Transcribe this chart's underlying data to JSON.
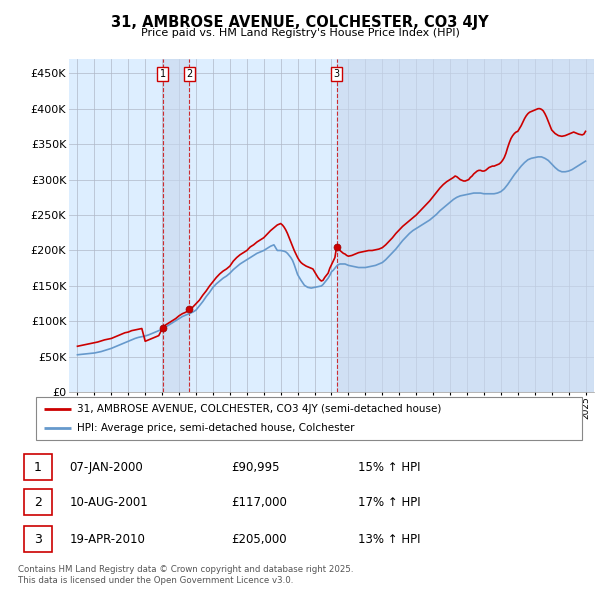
{
  "title": "31, AMBROSE AVENUE, COLCHESTER, CO3 4JY",
  "subtitle": "Price paid vs. HM Land Registry's House Price Index (HPI)",
  "ylim": [
    0,
    470000
  ],
  "yticks": [
    0,
    50000,
    100000,
    150000,
    200000,
    250000,
    300000,
    350000,
    400000,
    450000
  ],
  "ytick_labels": [
    "£0",
    "£50K",
    "£100K",
    "£150K",
    "£200K",
    "£250K",
    "£300K",
    "£350K",
    "£400K",
    "£450K"
  ],
  "line_color_property": "#cc0000",
  "line_color_hpi": "#6699cc",
  "bg_color": "#ddeeff",
  "legend_property_label": "31, AMBROSE AVENUE, COLCHESTER, CO3 4JY (semi-detached house)",
  "legend_hpi_label": "HPI: Average price, semi-detached house, Colchester",
  "transactions": [
    {
      "num": 1,
      "date": "07-JAN-2000",
      "price": "£90,995",
      "hpi": "15% ↑ HPI",
      "year": 2000.03,
      "value": 90995
    },
    {
      "num": 2,
      "date": "10-AUG-2001",
      "price": "£117,000",
      "hpi": "17% ↑ HPI",
      "year": 2001.61,
      "value": 117000
    },
    {
      "num": 3,
      "date": "19-APR-2010",
      "price": "£205,000",
      "hpi": "13% ↑ HPI",
      "year": 2010.3,
      "value": 205000
    }
  ],
  "footnote": "Contains HM Land Registry data © Crown copyright and database right 2025.\nThis data is licensed under the Open Government Licence v3.0.",
  "property_data": [
    [
      1995.0,
      65000
    ],
    [
      1995.1,
      65500
    ],
    [
      1995.2,
      66000
    ],
    [
      1995.3,
      66500
    ],
    [
      1995.4,
      67000
    ],
    [
      1995.5,
      67500
    ],
    [
      1995.6,
      68000
    ],
    [
      1995.7,
      68500
    ],
    [
      1995.8,
      69000
    ],
    [
      1995.9,
      69500
    ],
    [
      1996.0,
      70000
    ],
    [
      1996.2,
      71000
    ],
    [
      1996.4,
      72500
    ],
    [
      1996.6,
      74000
    ],
    [
      1996.8,
      75000
    ],
    [
      1997.0,
      76000
    ],
    [
      1997.2,
      78000
    ],
    [
      1997.4,
      80000
    ],
    [
      1997.6,
      82000
    ],
    [
      1997.8,
      84000
    ],
    [
      1998.0,
      85000
    ],
    [
      1998.2,
      87000
    ],
    [
      1998.4,
      88000
    ],
    [
      1998.6,
      89000
    ],
    [
      1998.8,
      90000
    ],
    [
      1999.0,
      72000
    ],
    [
      1999.2,
      74000
    ],
    [
      1999.4,
      76000
    ],
    [
      1999.6,
      78000
    ],
    [
      1999.8,
      80000
    ],
    [
      2000.03,
      90995
    ],
    [
      2000.1,
      93000
    ],
    [
      2000.2,
      95000
    ],
    [
      2000.4,
      98000
    ],
    [
      2000.6,
      101000
    ],
    [
      2000.8,
      104000
    ],
    [
      2001.0,
      108000
    ],
    [
      2001.2,
      111000
    ],
    [
      2001.4,
      113000
    ],
    [
      2001.61,
      117000
    ],
    [
      2001.8,
      120000
    ],
    [
      2002.0,
      125000
    ],
    [
      2002.2,
      130000
    ],
    [
      2002.4,
      137000
    ],
    [
      2002.6,
      143000
    ],
    [
      2002.8,
      150000
    ],
    [
      2003.0,
      156000
    ],
    [
      2003.2,
      162000
    ],
    [
      2003.4,
      167000
    ],
    [
      2003.6,
      171000
    ],
    [
      2003.8,
      174000
    ],
    [
      2004.0,
      178000
    ],
    [
      2004.2,
      185000
    ],
    [
      2004.4,
      190000
    ],
    [
      2004.6,
      194000
    ],
    [
      2004.8,
      197000
    ],
    [
      2005.0,
      200000
    ],
    [
      2005.2,
      205000
    ],
    [
      2005.4,
      208000
    ],
    [
      2005.6,
      212000
    ],
    [
      2005.8,
      215000
    ],
    [
      2006.0,
      218000
    ],
    [
      2006.2,
      223000
    ],
    [
      2006.4,
      228000
    ],
    [
      2006.6,
      232000
    ],
    [
      2006.8,
      236000
    ],
    [
      2007.0,
      238000
    ],
    [
      2007.1,
      236000
    ],
    [
      2007.2,
      233000
    ],
    [
      2007.3,
      229000
    ],
    [
      2007.4,
      224000
    ],
    [
      2007.5,
      218000
    ],
    [
      2007.6,
      212000
    ],
    [
      2007.7,
      206000
    ],
    [
      2007.8,
      200000
    ],
    [
      2007.9,
      195000
    ],
    [
      2008.0,
      190000
    ],
    [
      2008.1,
      186000
    ],
    [
      2008.2,
      183000
    ],
    [
      2008.3,
      181000
    ],
    [
      2008.5,
      178000
    ],
    [
      2008.7,
      176000
    ],
    [
      2008.9,
      174000
    ],
    [
      2009.0,
      170000
    ],
    [
      2009.1,
      166000
    ],
    [
      2009.2,
      162000
    ],
    [
      2009.3,
      159000
    ],
    [
      2009.4,
      157000
    ],
    [
      2009.5,
      158000
    ],
    [
      2009.6,
      162000
    ],
    [
      2009.8,
      168000
    ],
    [
      2009.9,
      175000
    ],
    [
      2010.0,
      180000
    ],
    [
      2010.1,
      185000
    ],
    [
      2010.2,
      190000
    ],
    [
      2010.3,
      205000
    ],
    [
      2010.4,
      203000
    ],
    [
      2010.5,
      200000
    ],
    [
      2010.6,
      198000
    ],
    [
      2010.7,
      196000
    ],
    [
      2010.8,
      195000
    ],
    [
      2010.9,
      193000
    ],
    [
      2011.0,
      192000
    ],
    [
      2011.2,
      193000
    ],
    [
      2011.4,
      195000
    ],
    [
      2011.6,
      197000
    ],
    [
      2011.8,
      198000
    ],
    [
      2012.0,
      199000
    ],
    [
      2012.2,
      200000
    ],
    [
      2012.4,
      200000
    ],
    [
      2012.6,
      201000
    ],
    [
      2012.8,
      202000
    ],
    [
      2013.0,
      204000
    ],
    [
      2013.2,
      208000
    ],
    [
      2013.4,
      213000
    ],
    [
      2013.6,
      218000
    ],
    [
      2013.8,
      224000
    ],
    [
      2014.0,
      229000
    ],
    [
      2014.2,
      234000
    ],
    [
      2014.4,
      238000
    ],
    [
      2014.6,
      242000
    ],
    [
      2014.8,
      246000
    ],
    [
      2015.0,
      250000
    ],
    [
      2015.2,
      255000
    ],
    [
      2015.4,
      260000
    ],
    [
      2015.6,
      265000
    ],
    [
      2015.8,
      270000
    ],
    [
      2016.0,
      276000
    ],
    [
      2016.2,
      282000
    ],
    [
      2016.4,
      288000
    ],
    [
      2016.6,
      293000
    ],
    [
      2016.8,
      297000
    ],
    [
      2017.0,
      300000
    ],
    [
      2017.2,
      303000
    ],
    [
      2017.3,
      305000
    ],
    [
      2017.4,
      304000
    ],
    [
      2017.5,
      302000
    ],
    [
      2017.6,
      300000
    ],
    [
      2017.7,
      299000
    ],
    [
      2017.8,
      298000
    ],
    [
      2017.9,
      298000
    ],
    [
      2018.0,
      299000
    ],
    [
      2018.1,
      300000
    ],
    [
      2018.2,
      303000
    ],
    [
      2018.3,
      305000
    ],
    [
      2018.4,
      308000
    ],
    [
      2018.5,
      310000
    ],
    [
      2018.6,
      312000
    ],
    [
      2018.7,
      313000
    ],
    [
      2018.8,
      313000
    ],
    [
      2018.9,
      312000
    ],
    [
      2019.0,
      312000
    ],
    [
      2019.1,
      313000
    ],
    [
      2019.2,
      315000
    ],
    [
      2019.3,
      317000
    ],
    [
      2019.4,
      318000
    ],
    [
      2019.5,
      319000
    ],
    [
      2019.6,
      319000
    ],
    [
      2019.7,
      320000
    ],
    [
      2019.8,
      321000
    ],
    [
      2019.9,
      322000
    ],
    [
      2020.0,
      324000
    ],
    [
      2020.1,
      327000
    ],
    [
      2020.2,
      331000
    ],
    [
      2020.3,
      337000
    ],
    [
      2020.4,
      345000
    ],
    [
      2020.5,
      352000
    ],
    [
      2020.6,
      358000
    ],
    [
      2020.7,
      362000
    ],
    [
      2020.8,
      365000
    ],
    [
      2020.9,
      367000
    ],
    [
      2021.0,
      368000
    ],
    [
      2021.1,
      372000
    ],
    [
      2021.2,
      376000
    ],
    [
      2021.3,
      381000
    ],
    [
      2021.4,
      386000
    ],
    [
      2021.5,
      390000
    ],
    [
      2021.6,
      393000
    ],
    [
      2021.7,
      395000
    ],
    [
      2021.8,
      396000
    ],
    [
      2021.9,
      397000
    ],
    [
      2022.0,
      398000
    ],
    [
      2022.1,
      399000
    ],
    [
      2022.2,
      400000
    ],
    [
      2022.3,
      400000
    ],
    [
      2022.4,
      399000
    ],
    [
      2022.5,
      397000
    ],
    [
      2022.6,
      393000
    ],
    [
      2022.7,
      388000
    ],
    [
      2022.8,
      382000
    ],
    [
      2022.9,
      376000
    ],
    [
      2023.0,
      370000
    ],
    [
      2023.2,
      365000
    ],
    [
      2023.4,
      362000
    ],
    [
      2023.6,
      361000
    ],
    [
      2023.8,
      362000
    ],
    [
      2024.0,
      364000
    ],
    [
      2024.2,
      366000
    ],
    [
      2024.3,
      367000
    ],
    [
      2024.4,
      366000
    ],
    [
      2024.5,
      365000
    ],
    [
      2024.6,
      364000
    ],
    [
      2024.8,
      363000
    ],
    [
      2024.9,
      364000
    ],
    [
      2025.0,
      368000
    ]
  ],
  "hpi_data": [
    [
      1995.0,
      53000
    ],
    [
      1995.2,
      53500
    ],
    [
      1995.4,
      54000
    ],
    [
      1995.6,
      54500
    ],
    [
      1995.8,
      55000
    ],
    [
      1996.0,
      55500
    ],
    [
      1996.2,
      56500
    ],
    [
      1996.4,
      57500
    ],
    [
      1996.6,
      59000
    ],
    [
      1996.8,
      60500
    ],
    [
      1997.0,
      62000
    ],
    [
      1997.2,
      64000
    ],
    [
      1997.4,
      66000
    ],
    [
      1997.6,
      68000
    ],
    [
      1997.8,
      70000
    ],
    [
      1998.0,
      72000
    ],
    [
      1998.2,
      74000
    ],
    [
      1998.4,
      76000
    ],
    [
      1998.6,
      77500
    ],
    [
      1998.8,
      78500
    ],
    [
      1999.0,
      79500
    ],
    [
      1999.2,
      81000
    ],
    [
      1999.4,
      83000
    ],
    [
      1999.6,
      85000
    ],
    [
      1999.8,
      87000
    ],
    [
      2000.0,
      89000
    ],
    [
      2000.2,
      92000
    ],
    [
      2000.4,
      95000
    ],
    [
      2000.6,
      98000
    ],
    [
      2000.8,
      101000
    ],
    [
      2001.0,
      104000
    ],
    [
      2001.2,
      107000
    ],
    [
      2001.4,
      109000
    ],
    [
      2001.6,
      111000
    ],
    [
      2001.8,
      113000
    ],
    [
      2002.0,
      116000
    ],
    [
      2002.2,
      122000
    ],
    [
      2002.4,
      128000
    ],
    [
      2002.6,
      135000
    ],
    [
      2002.8,
      141000
    ],
    [
      2003.0,
      148000
    ],
    [
      2003.2,
      153000
    ],
    [
      2003.4,
      157000
    ],
    [
      2003.6,
      161000
    ],
    [
      2003.8,
      164000
    ],
    [
      2004.0,
      168000
    ],
    [
      2004.2,
      173000
    ],
    [
      2004.4,
      177000
    ],
    [
      2004.6,
      181000
    ],
    [
      2004.8,
      184000
    ],
    [
      2005.0,
      187000
    ],
    [
      2005.2,
      190000
    ],
    [
      2005.4,
      193000
    ],
    [
      2005.6,
      196000
    ],
    [
      2005.8,
      198000
    ],
    [
      2006.0,
      200000
    ],
    [
      2006.2,
      203000
    ],
    [
      2006.4,
      206000
    ],
    [
      2006.6,
      208000
    ],
    [
      2006.8,
      200000
    ],
    [
      2007.0,
      200000
    ],
    [
      2007.2,
      199000
    ],
    [
      2007.3,
      198000
    ],
    [
      2007.4,
      196000
    ],
    [
      2007.5,
      193000
    ],
    [
      2007.6,
      190000
    ],
    [
      2007.7,
      186000
    ],
    [
      2007.8,
      180000
    ],
    [
      2007.9,
      173000
    ],
    [
      2008.0,
      166000
    ],
    [
      2008.2,
      158000
    ],
    [
      2008.4,
      151000
    ],
    [
      2008.6,
      148000
    ],
    [
      2008.8,
      147000
    ],
    [
      2009.0,
      148000
    ],
    [
      2009.2,
      149000
    ],
    [
      2009.3,
      149500
    ],
    [
      2009.4,
      150000
    ],
    [
      2009.5,
      152000
    ],
    [
      2009.6,
      155000
    ],
    [
      2009.7,
      158000
    ],
    [
      2009.8,
      161000
    ],
    [
      2009.9,
      165000
    ],
    [
      2010.0,
      170000
    ],
    [
      2010.1,
      172000
    ],
    [
      2010.2,
      175000
    ],
    [
      2010.3,
      178000
    ],
    [
      2010.4,
      180000
    ],
    [
      2010.5,
      181000
    ],
    [
      2010.6,
      181000
    ],
    [
      2010.7,
      181000
    ],
    [
      2010.8,
      181000
    ],
    [
      2010.9,
      180000
    ],
    [
      2011.0,
      179000
    ],
    [
      2011.2,
      178000
    ],
    [
      2011.4,
      177000
    ],
    [
      2011.6,
      176000
    ],
    [
      2011.8,
      176000
    ],
    [
      2012.0,
      176000
    ],
    [
      2012.2,
      177000
    ],
    [
      2012.4,
      178000
    ],
    [
      2012.6,
      179000
    ],
    [
      2012.8,
      181000
    ],
    [
      2013.0,
      183000
    ],
    [
      2013.2,
      187000
    ],
    [
      2013.4,
      192000
    ],
    [
      2013.6,
      197000
    ],
    [
      2013.8,
      202000
    ],
    [
      2014.0,
      208000
    ],
    [
      2014.2,
      214000
    ],
    [
      2014.4,
      219000
    ],
    [
      2014.6,
      224000
    ],
    [
      2014.8,
      228000
    ],
    [
      2015.0,
      231000
    ],
    [
      2015.2,
      234000
    ],
    [
      2015.4,
      237000
    ],
    [
      2015.6,
      240000
    ],
    [
      2015.8,
      243000
    ],
    [
      2016.0,
      247000
    ],
    [
      2016.2,
      251000
    ],
    [
      2016.4,
      256000
    ],
    [
      2016.6,
      260000
    ],
    [
      2016.8,
      264000
    ],
    [
      2017.0,
      268000
    ],
    [
      2017.2,
      272000
    ],
    [
      2017.4,
      275000
    ],
    [
      2017.6,
      277000
    ],
    [
      2017.8,
      278000
    ],
    [
      2018.0,
      279000
    ],
    [
      2018.2,
      280000
    ],
    [
      2018.4,
      281000
    ],
    [
      2018.6,
      281000
    ],
    [
      2018.8,
      281000
    ],
    [
      2019.0,
      280000
    ],
    [
      2019.2,
      280000
    ],
    [
      2019.4,
      280000
    ],
    [
      2019.6,
      280000
    ],
    [
      2019.8,
      281000
    ],
    [
      2020.0,
      283000
    ],
    [
      2020.2,
      287000
    ],
    [
      2020.4,
      293000
    ],
    [
      2020.6,
      300000
    ],
    [
      2020.8,
      307000
    ],
    [
      2021.0,
      313000
    ],
    [
      2021.2,
      319000
    ],
    [
      2021.4,
      324000
    ],
    [
      2021.6,
      328000
    ],
    [
      2021.8,
      330000
    ],
    [
      2022.0,
      331000
    ],
    [
      2022.2,
      332000
    ],
    [
      2022.4,
      332000
    ],
    [
      2022.6,
      330000
    ],
    [
      2022.8,
      327000
    ],
    [
      2023.0,
      322000
    ],
    [
      2023.2,
      317000
    ],
    [
      2023.4,
      313000
    ],
    [
      2023.6,
      311000
    ],
    [
      2023.8,
      311000
    ],
    [
      2024.0,
      312000
    ],
    [
      2024.2,
      314000
    ],
    [
      2024.4,
      317000
    ],
    [
      2024.6,
      320000
    ],
    [
      2024.8,
      323000
    ],
    [
      2025.0,
      326000
    ]
  ]
}
